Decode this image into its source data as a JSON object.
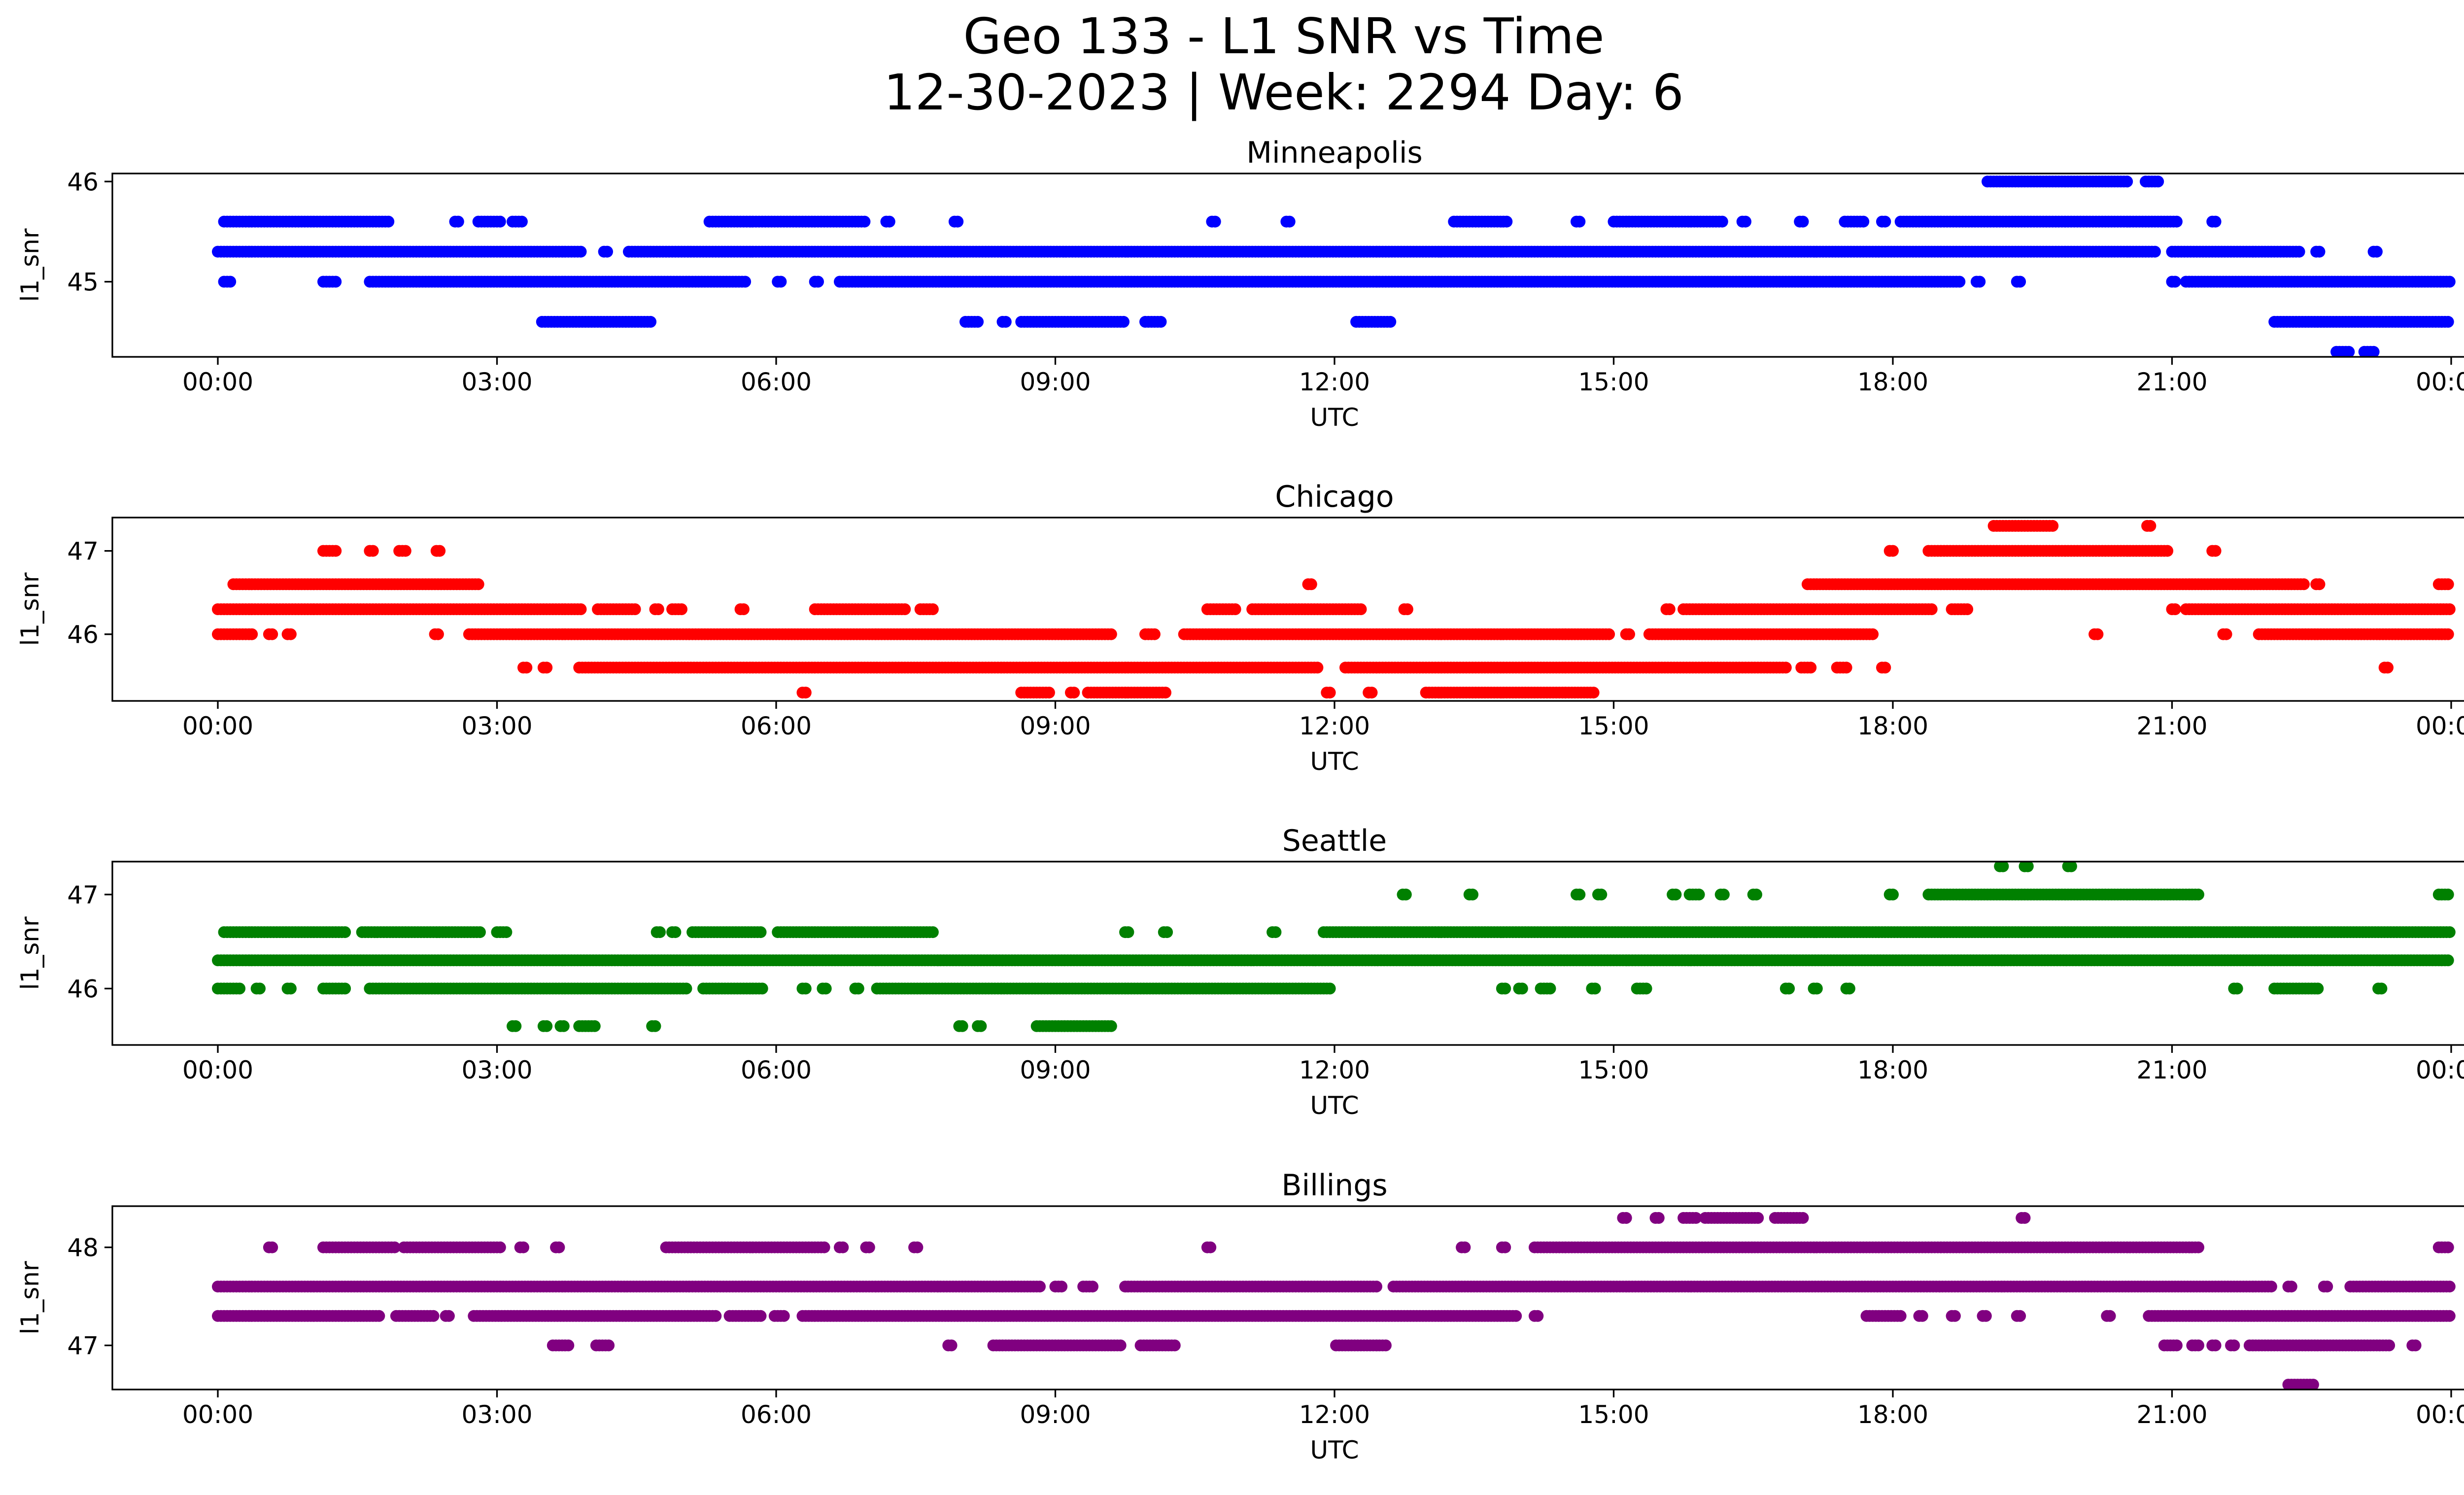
{
  "title_line1": "Geo 133 - L1 SNR vs Time",
  "title_line2": "12-30-2023 | Week: 2294 Day: 6",
  "colors": {
    "Minneapolis": "#0000ff",
    "Chicago": "#ff0000",
    "Seattle": "#008000",
    "Billings": "#800080"
  },
  "chart_data": [
    {
      "type": "scatter",
      "title": "Minneapolis",
      "xlabel": "UTC",
      "ylabel": "l1_snr",
      "xlim": [
        "2023-12-29T22:52",
        "2023-12-31T01:08"
      ],
      "ylim": [
        44.25,
        46.08
      ],
      "yticks": [
        45,
        46
      ],
      "xticks": [
        "00:00",
        "03:00",
        "06:00",
        "09:00",
        "12:00",
        "15:00",
        "18:00",
        "21:00",
        "00:00"
      ],
      "point_series": [
        {
          "value": 46.0,
          "runs": [
            [
              "19:01",
              "20:31"
            ],
            [
              "20:43",
              "20:51"
            ]
          ]
        },
        {
          "value": 45.6,
          "runs": [
            [
              "00:04",
              "01:51"
            ],
            [
              "02:33",
              "02:35"
            ],
            [
              "02:48",
              "03:02"
            ],
            [
              "03:10",
              "03:17"
            ],
            [
              "05:17",
              "06:57"
            ],
            [
              "07:11",
              "07:13"
            ],
            [
              "07:55",
              "07:57"
            ],
            [
              "10:41",
              "10:43"
            ],
            [
              "11:29",
              "11:31"
            ],
            [
              "13:17",
              "13:51"
            ],
            [
              "14:36",
              "14:38"
            ],
            [
              "15:00",
              "16:11"
            ],
            [
              "16:23",
              "16:25"
            ],
            [
              "17:00",
              "17:02"
            ],
            [
              "17:29",
              "17:41"
            ],
            [
              "17:53",
              "17:55"
            ],
            [
              "18:05",
              "21:03"
            ],
            [
              "21:26",
              "21:28"
            ]
          ]
        },
        {
          "value": 45.3,
          "runs": [
            [
              "00:00",
              "03:55"
            ],
            [
              "04:09",
              "04:11"
            ],
            [
              "04:25",
              "20:49"
            ],
            [
              "21:00",
              "22:23"
            ],
            [
              "22:33",
              "22:35"
            ],
            [
              "23:10",
              "23:12"
            ]
          ]
        },
        {
          "value": 45.0,
          "runs": [
            [
              "00:04",
              "00:08"
            ],
            [
              "01:08",
              "01:17"
            ],
            [
              "01:38",
              "05:40"
            ],
            [
              "06:01",
              "06:03"
            ],
            [
              "06:25",
              "06:27"
            ],
            [
              "06:41",
              "18:43"
            ],
            [
              "18:54",
              "18:56"
            ],
            [
              "19:20",
              "19:22"
            ],
            [
              "21:00",
              "21:02"
            ],
            [
              "21:09",
              "23:59"
            ]
          ]
        },
        {
          "value": 44.6,
          "runs": [
            [
              "03:29",
              "04:40"
            ],
            [
              "08:02",
              "08:10"
            ],
            [
              "08:26",
              "08:28"
            ],
            [
              "08:38",
              "09:44"
            ],
            [
              "09:58",
              "10:09"
            ],
            [
              "12:14",
              "12:36"
            ],
            [
              "22:06",
              "23:59"
            ]
          ]
        },
        {
          "value": 44.3,
          "runs": [
            [
              "22:46",
              "22:55"
            ],
            [
              "23:04",
              "23:11"
            ]
          ]
        }
      ]
    },
    {
      "type": "scatter",
      "title": "Chicago",
      "xlabel": "UTC",
      "ylabel": "l1_snr",
      "xlim": [
        "2023-12-29T22:52",
        "2023-12-31T01:08"
      ],
      "ylim": [
        45.2,
        47.4
      ],
      "yticks": [
        46,
        47
      ],
      "xticks": [
        "00:00",
        "03:00",
        "06:00",
        "09:00",
        "12:00",
        "15:00",
        "18:00",
        "21:00",
        "00:00"
      ],
      "point_series": [
        {
          "value": 47.3,
          "runs": [
            [
              "19:05",
              "19:43"
            ],
            [
              "20:44",
              "20:46"
            ]
          ]
        },
        {
          "value": 47.0,
          "runs": [
            [
              "01:08",
              "01:17"
            ],
            [
              "01:38",
              "01:40"
            ],
            [
              "01:57",
              "02:02"
            ],
            [
              "02:21",
              "02:23"
            ],
            [
              "17:58",
              "18:00"
            ],
            [
              "18:23",
              "20:58"
            ],
            [
              "21:26",
              "21:28"
            ]
          ]
        },
        {
          "value": 46.6,
          "runs": [
            [
              "00:10",
              "02:49"
            ],
            [
              "11:43",
              "11:45"
            ],
            [
              "17:05",
              "22:25"
            ],
            [
              "22:33",
              "22:35"
            ],
            [
              "23:52",
              "23:59"
            ]
          ]
        },
        {
          "value": 46.3,
          "runs": [
            [
              "00:00",
              "03:55"
            ],
            [
              "04:05",
              "04:29"
            ],
            [
              "04:42",
              "04:44"
            ],
            [
              "04:53",
              "04:59"
            ],
            [
              "05:37",
              "05:39"
            ],
            [
              "06:25",
              "07:23"
            ],
            [
              "07:33",
              "07:41"
            ],
            [
              "10:38",
              "10:56"
            ],
            [
              "11:07",
              "12:17"
            ],
            [
              "12:45",
              "12:47"
            ],
            [
              "15:34",
              "15:36"
            ],
            [
              "15:45",
              "18:25"
            ],
            [
              "18:38",
              "18:49"
            ],
            [
              "21:00",
              "21:02"
            ],
            [
              "21:09",
              "23:59"
            ]
          ]
        },
        {
          "value": 46.0,
          "runs": [
            [
              "00:00",
              "00:22"
            ],
            [
              "00:33",
              "00:35"
            ],
            [
              "00:45",
              "00:47"
            ],
            [
              "02:20",
              "02:22"
            ],
            [
              "02:42",
              "09:37"
            ],
            [
              "09:58",
              "10:05"
            ],
            [
              "10:23",
              "14:58"
            ],
            [
              "15:08",
              "15:10"
            ],
            [
              "15:23",
              "17:47"
            ],
            [
              "20:10",
              "20:12"
            ],
            [
              "21:33",
              "21:35"
            ],
            [
              "21:56",
              "23:59"
            ]
          ]
        },
        {
          "value": 45.6,
          "runs": [
            [
              "03:17",
              "03:19"
            ],
            [
              "03:30",
              "03:32"
            ],
            [
              "03:53",
              "11:49"
            ],
            [
              "12:07",
              "16:51"
            ],
            [
              "17:01",
              "17:07"
            ],
            [
              "17:24",
              "17:31"
            ],
            [
              "17:53",
              "17:55"
            ],
            [
              "23:17",
              "23:19"
            ]
          ]
        },
        {
          "value": 45.3,
          "runs": [
            [
              "06:17",
              "06:19"
            ],
            [
              "08:38",
              "08:56"
            ],
            [
              "09:10",
              "09:12"
            ],
            [
              "09:21",
              "10:11"
            ],
            [
              "11:55",
              "11:57"
            ],
            [
              "12:22",
              "12:24"
            ],
            [
              "12:59",
              "14:48"
            ]
          ]
        }
      ]
    },
    {
      "type": "scatter",
      "title": "Seattle",
      "xlabel": "UTC",
      "ylabel": "l1_snr",
      "xlim": [
        "2023-12-29T22:52",
        "2023-12-31T01:08"
      ],
      "ylim": [
        45.4,
        47.35
      ],
      "yticks": [
        46,
        47
      ],
      "xticks": [
        "00:00",
        "03:00",
        "06:00",
        "09:00",
        "12:00",
        "15:00",
        "18:00",
        "21:00",
        "00:00"
      ],
      "point_series": [
        {
          "value": 47.3,
          "runs": [
            [
              "19:09",
              "19:11"
            ],
            [
              "19:25",
              "19:27"
            ],
            [
              "19:53",
              "19:55"
            ]
          ]
        },
        {
          "value": 47.0,
          "runs": [
            [
              "12:44",
              "12:46"
            ],
            [
              "13:27",
              "13:29"
            ],
            [
              "14:36",
              "14:38"
            ],
            [
              "14:50",
              "14:52"
            ],
            [
              "15:38",
              "15:40"
            ],
            [
              "15:49",
              "15:56"
            ],
            [
              "16:09",
              "16:11"
            ],
            [
              "16:30",
              "16:32"
            ],
            [
              "17:58",
              "18:00"
            ],
            [
              "18:23",
              "21:17"
            ],
            [
              "23:52",
              "23:59"
            ]
          ]
        },
        {
          "value": 46.6,
          "runs": [
            [
              "00:04",
              "01:23"
            ],
            [
              "01:33",
              "02:49"
            ],
            [
              "03:00",
              "03:07"
            ],
            [
              "04:43",
              "04:45"
            ],
            [
              "04:53",
              "04:55"
            ],
            [
              "05:06",
              "05:51"
            ],
            [
              "06:01",
              "07:41"
            ],
            [
              "09:45",
              "09:47"
            ],
            [
              "10:10",
              "10:12"
            ],
            [
              "11:20",
              "11:22"
            ],
            [
              "11:53",
              "23:59"
            ]
          ]
        },
        {
          "value": 46.3,
          "runs": [
            [
              "00:00",
              "23:59"
            ]
          ]
        },
        {
          "value": 46.0,
          "runs": [
            [
              "00:00",
              "00:14"
            ],
            [
              "00:25",
              "00:27"
            ],
            [
              "00:45",
              "00:47"
            ],
            [
              "01:08",
              "01:23"
            ],
            [
              "01:38",
              "05:02"
            ],
            [
              "05:13",
              "05:51"
            ],
            [
              "06:17",
              "06:19"
            ],
            [
              "06:30",
              "06:32"
            ],
            [
              "06:51",
              "06:53"
            ],
            [
              "07:05",
              "11:57"
            ],
            [
              "13:48",
              "13:50"
            ],
            [
              "13:59",
              "14:01"
            ],
            [
              "14:13",
              "14:19"
            ],
            [
              "14:46",
              "14:48"
            ],
            [
              "15:15",
              "15:21"
            ],
            [
              "16:51",
              "16:53"
            ],
            [
              "17:09",
              "17:11"
            ],
            [
              "17:30",
              "17:32"
            ],
            [
              "21:40",
              "21:42"
            ],
            [
              "22:06",
              "22:35"
            ],
            [
              "23:13",
              "23:15"
            ]
          ]
        },
        {
          "value": 45.6,
          "runs": [
            [
              "03:10",
              "03:12"
            ],
            [
              "03:30",
              "03:32"
            ],
            [
              "03:41",
              "03:43"
            ],
            [
              "03:53",
              "04:04"
            ],
            [
              "04:40",
              "04:42"
            ],
            [
              "07:58",
              "08:00"
            ],
            [
              "08:10",
              "08:12"
            ],
            [
              "08:48",
              "09:37"
            ]
          ]
        }
      ]
    },
    {
      "type": "scatter",
      "title": "Billings",
      "xlabel": "UTC",
      "ylabel": "l1_snr",
      "xlim": [
        "2023-12-29T22:52",
        "2023-12-31T01:08"
      ],
      "ylim": [
        46.55,
        48.42
      ],
      "yticks": [
        47,
        48
      ],
      "xticks": [
        "00:00",
        "03:00",
        "06:00",
        "09:00",
        "12:00",
        "15:00",
        "18:00",
        "21:00",
        "00:00"
      ],
      "point_series": [
        {
          "value": 48.3,
          "runs": [
            [
              "15:06",
              "15:08"
            ],
            [
              "15:27",
              "15:29"
            ],
            [
              "15:45",
              "15:53"
            ],
            [
              "15:59",
              "16:34"
            ],
            [
              "16:44",
              "17:03"
            ],
            [
              "19:23",
              "19:25"
            ]
          ]
        },
        {
          "value": 48.0,
          "runs": [
            [
              "00:33",
              "00:35"
            ],
            [
              "01:08",
              "01:54"
            ],
            [
              "02:00",
              "03:02"
            ],
            [
              "03:15",
              "03:17"
            ],
            [
              "03:38",
              "03:40"
            ],
            [
              "04:49",
              "06:31"
            ],
            [
              "06:41",
              "06:43"
            ],
            [
              "06:58",
              "07:00"
            ],
            [
              "07:29",
              "07:31"
            ],
            [
              "10:38",
              "10:40"
            ],
            [
              "13:22",
              "13:24"
            ],
            [
              "13:48",
              "13:50"
            ],
            [
              "14:09",
              "21:17"
            ],
            [
              "23:52",
              "23:59"
            ]
          ]
        },
        {
          "value": 47.6,
          "runs": [
            [
              "00:00",
              "08:50"
            ],
            [
              "09:00",
              "09:05"
            ],
            [
              "09:18",
              "09:24"
            ],
            [
              "09:45",
              "12:28"
            ],
            [
              "12:38",
              "22:05"
            ],
            [
              "22:15",
              "22:17"
            ],
            [
              "22:38",
              "22:40"
            ],
            [
              "22:55",
              "23:59"
            ]
          ]
        },
        {
          "value": 47.3,
          "runs": [
            [
              "00:00",
              "01:45"
            ],
            [
              "01:55",
              "02:20"
            ],
            [
              "02:27",
              "02:29"
            ],
            [
              "02:45",
              "05:21"
            ],
            [
              "05:30",
              "05:51"
            ],
            [
              "05:59",
              "06:05"
            ],
            [
              "06:17",
              "13:57"
            ],
            [
              "14:09",
              "14:11"
            ],
            [
              "17:43",
              "18:05"
            ],
            [
              "18:17",
              "18:19"
            ],
            [
              "18:38",
              "18:40"
            ],
            [
              "18:58",
              "19:00"
            ],
            [
              "19:20",
              "19:22"
            ],
            [
              "20:18",
              "20:20"
            ],
            [
              "20:45",
              "23:59"
            ]
          ]
        },
        {
          "value": 47.0,
          "runs": [
            [
              "03:36",
              "03:47"
            ],
            [
              "04:04",
              "04:13"
            ],
            [
              "07:51",
              "07:53"
            ],
            [
              "08:20",
              "09:42"
            ],
            [
              "09:55",
              "10:17"
            ],
            [
              "12:01",
              "12:33"
            ],
            [
              "20:55",
              "21:03"
            ],
            [
              "21:13",
              "21:17"
            ],
            [
              "21:26",
              "21:28"
            ],
            [
              "21:38",
              "21:40"
            ],
            [
              "21:50",
              "23:20"
            ],
            [
              "23:35",
              "23:37"
            ]
          ]
        },
        {
          "value": 46.6,
          "runs": [
            [
              "22:15",
              "22:31"
            ]
          ]
        }
      ]
    }
  ]
}
